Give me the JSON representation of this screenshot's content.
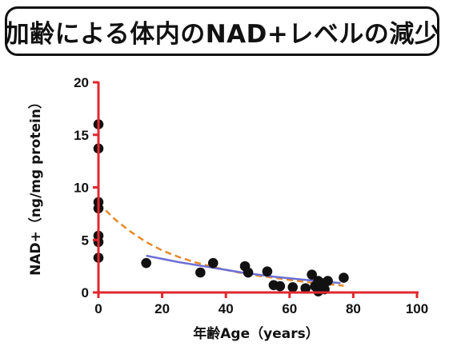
{
  "title": "加齢による体内のNAD+レベルの減少",
  "chart_data": {
    "type": "scatter",
    "title": "加齢による体内のNAD+レベルの減少",
    "xlabel": "年齢Age（years）",
    "ylabel": "NAD+（ng/mg protein）",
    "xlim": [
      0,
      100
    ],
    "ylim": [
      0,
      20
    ],
    "x_ticks": [
      "0",
      "20",
      "40",
      "60",
      "80",
      "100"
    ],
    "y_ticks": [
      "0",
      "5",
      "10",
      "15",
      "20"
    ],
    "grid": false,
    "axis_color": "#e0282e",
    "point_color": "#111111",
    "points": [
      {
        "x": 0,
        "y": 16.0
      },
      {
        "x": 0,
        "y": 13.7
      },
      {
        "x": 0,
        "y": 8.6
      },
      {
        "x": 0,
        "y": 8.0
      },
      {
        "x": 0,
        "y": 5.4
      },
      {
        "x": 0,
        "y": 4.8
      },
      {
        "x": 0,
        "y": 3.3
      },
      {
        "x": 15,
        "y": 2.8
      },
      {
        "x": 32,
        "y": 1.9
      },
      {
        "x": 36,
        "y": 2.8
      },
      {
        "x": 46,
        "y": 2.5
      },
      {
        "x": 47,
        "y": 1.9
      },
      {
        "x": 53,
        "y": 2.0
      },
      {
        "x": 55,
        "y": 0.7
      },
      {
        "x": 57,
        "y": 0.6
      },
      {
        "x": 61,
        "y": 0.5
      },
      {
        "x": 65,
        "y": 0.4
      },
      {
        "x": 67,
        "y": 1.7
      },
      {
        "x": 68,
        "y": 0.6
      },
      {
        "x": 69,
        "y": 0.1
      },
      {
        "x": 69,
        "y": 1.1
      },
      {
        "x": 70,
        "y": 0.9
      },
      {
        "x": 71,
        "y": 0.3
      },
      {
        "x": 72,
        "y": 1.1
      },
      {
        "x": 77,
        "y": 1.4
      }
    ],
    "curves": [
      {
        "style": "dashed",
        "color": "#e8892b",
        "x": [
          0,
          5,
          10,
          15,
          20,
          25,
          30,
          35,
          40,
          45,
          50,
          55,
          60,
          65,
          70,
          75,
          77
        ],
        "y": [
          8.5,
          7.0,
          5.8,
          4.8,
          4.0,
          3.4,
          2.9,
          2.5,
          2.15,
          1.85,
          1.6,
          1.4,
          1.2,
          1.0,
          0.85,
          0.7,
          0.65
        ]
      },
      {
        "style": "solid",
        "color": "#6b6fd4",
        "x": [
          15,
          25,
          35,
          45,
          55,
          65,
          76
        ],
        "y": [
          3.5,
          2.9,
          2.4,
          1.9,
          1.5,
          1.2,
          0.9
        ]
      }
    ]
  }
}
